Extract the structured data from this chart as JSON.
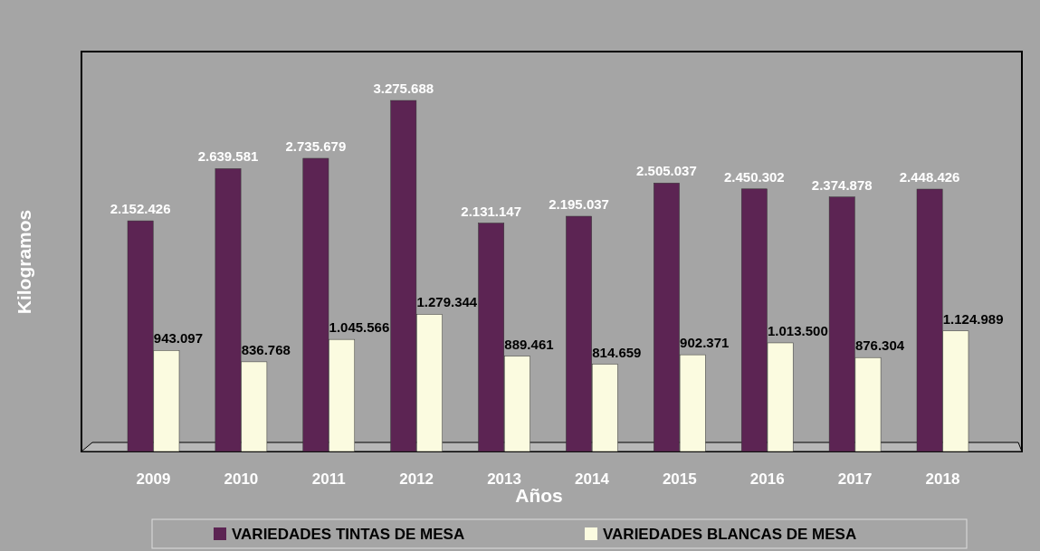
{
  "chart_data": {
    "type": "bar",
    "xlabel": "Años",
    "ylabel": "Kilogramos",
    "legend": "bottom",
    "categories": [
      "2009",
      "2010",
      "2011",
      "2012",
      "2013",
      "2014",
      "2015",
      "2016",
      "2017",
      "2018"
    ],
    "series": [
      {
        "name": "VARIEDADES TINTAS DE MESA",
        "color": "#5c2453",
        "values": [
          2152426,
          2639581,
          2735679,
          3275688,
          2131147,
          2195037,
          2505037,
          2450302,
          2374878,
          2448426
        ],
        "value_labels": [
          "2.152.426",
          "2.639.581",
          "2.735.679",
          "3.275.688",
          "2.131.147",
          "2.195.037",
          "2.505.037",
          "2.450.302",
          "2.374.878",
          "2.448.426"
        ]
      },
      {
        "name": "VARIEDADES BLANCAS DE MESA",
        "color": "#fbfbe0",
        "values": [
          943097,
          836768,
          1045566,
          1279344,
          889461,
          814659,
          902371,
          1013500,
          876304,
          1124989
        ],
        "value_labels": [
          "943.097",
          "836.768",
          "1.045.566",
          "1.279.344",
          "889.461",
          "814.659",
          "902.371",
          "1.013.500",
          "876.304",
          "1.124.989"
        ]
      }
    ]
  }
}
